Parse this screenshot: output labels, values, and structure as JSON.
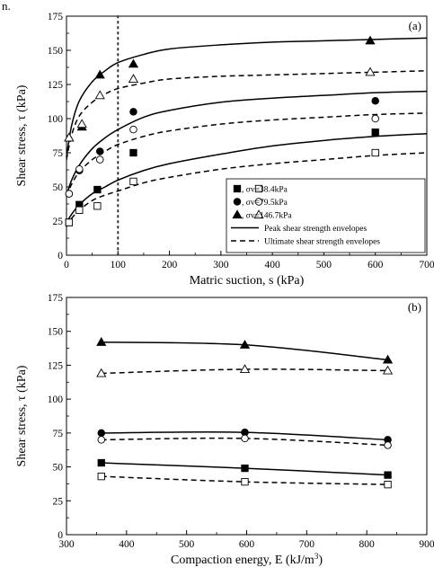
{
  "top_fragment": "n.",
  "chart_data": [
    {
      "type": "scatter",
      "panel_label": "(a)",
      "xlabel": "Matric suction, s (kPa)",
      "ylabel": "Shear stress, τ (kPa)",
      "xlim": [
        0,
        700
      ],
      "ylim": [
        0,
        175
      ],
      "xticks": [
        0,
        100,
        200,
        300,
        400,
        500,
        600,
        700
      ],
      "yticks": [
        0,
        25,
        50,
        75,
        100,
        125,
        150,
        175
      ],
      "vline": {
        "x": 100,
        "style": "dotted"
      },
      "legend": {
        "placement": "lower-right",
        "entries": [
          {
            "label": ",   σv=38.4kPa",
            "markers": [
              "filled-square",
              "open-square"
            ]
          },
          {
            "label": ",   σv=79.5kPa",
            "markers": [
              "filled-circle",
              "open-circle"
            ]
          },
          {
            "label": ",   σv=146.7kPa",
            "markers": [
              "filled-triangle",
              "open-triangle"
            ]
          },
          {
            "label": "Peak shear strength envelopes",
            "line": "solid"
          },
          {
            "label": "Ultimate shear strength envelopes",
            "line": "dashed"
          }
        ]
      },
      "series": [
        {
          "marker": "filled-square",
          "x": [
            5,
            25,
            60,
            130,
            600
          ],
          "y": [
            24,
            37,
            48,
            75,
            90
          ]
        },
        {
          "marker": "open-square",
          "x": [
            5,
            25,
            60,
            130,
            600
          ],
          "y": [
            24,
            33,
            36,
            54,
            75
          ]
        },
        {
          "marker": "filled-circle",
          "x": [
            5,
            25,
            65,
            130,
            600
          ],
          "y": [
            45,
            62,
            76,
            105,
            113
          ]
        },
        {
          "marker": "open-circle",
          "x": [
            5,
            25,
            65,
            130,
            600
          ],
          "y": [
            45,
            63,
            70,
            92,
            100
          ]
        },
        {
          "marker": "filled-triangle",
          "x": [
            5,
            30,
            65,
            130,
            590
          ],
          "y": [
            86,
            94,
            132,
            140,
            157
          ]
        },
        {
          "marker": "open-triangle",
          "x": [
            5,
            30,
            65,
            130,
            590
          ],
          "y": [
            86,
            96,
            117,
            129,
            134
          ]
        }
      ],
      "curves": [
        {
          "style": "solid",
          "x": [
            0,
            10,
            25,
            50,
            75,
            100,
            150,
            200,
            300,
            400,
            500,
            600,
            700
          ],
          "y": [
            24,
            30,
            37,
            45,
            50,
            55,
            62,
            67,
            74,
            80,
            84,
            87,
            89
          ]
        },
        {
          "style": "dashed",
          "x": [
            0,
            10,
            25,
            50,
            75,
            100,
            150,
            200,
            300,
            400,
            500,
            600,
            700
          ],
          "y": [
            21,
            27,
            33,
            40,
            44,
            47,
            53,
            57,
            63,
            67,
            70,
            73,
            75
          ]
        },
        {
          "style": "solid",
          "x": [
            0,
            10,
            25,
            50,
            75,
            100,
            150,
            200,
            300,
            400,
            500,
            600,
            700
          ],
          "y": [
            44,
            55,
            66,
            78,
            86,
            92,
            101,
            106,
            112,
            115,
            117,
            119,
            120
          ]
        },
        {
          "style": "dashed",
          "x": [
            0,
            10,
            25,
            50,
            75,
            100,
            150,
            200,
            300,
            400,
            500,
            600,
            700
          ],
          "y": [
            43,
            52,
            61,
            70,
            76,
            81,
            87,
            91,
            96,
            99,
            101,
            103,
            104
          ]
        },
        {
          "style": "solid",
          "x": [
            0,
            10,
            25,
            50,
            75,
            100,
            150,
            200,
            300,
            400,
            500,
            600,
            700
          ],
          "y": [
            72,
            95,
            113,
            127,
            135,
            141,
            147,
            151,
            154,
            156,
            157,
            158,
            159
          ]
        },
        {
          "style": "dashed",
          "x": [
            0,
            10,
            25,
            50,
            75,
            100,
            150,
            200,
            300,
            400,
            500,
            600,
            700
          ],
          "y": [
            70,
            88,
            102,
            112,
            118,
            122,
            126,
            129,
            131,
            132,
            133,
            134,
            135
          ]
        }
      ]
    },
    {
      "type": "line",
      "panel_label": "(b)",
      "xlabel": "Compaction energy, E (kJ/m",
      "xlabel_superscript": "3",
      "xlabel_suffix": ")",
      "ylabel": "Shear stress, τ (kPa)",
      "xlim": [
        300,
        900
      ],
      "ylim": [
        0,
        175
      ],
      "xticks": [
        300,
        400,
        500,
        600,
        700,
        800,
        900
      ],
      "yticks": [
        0,
        25,
        50,
        75,
        100,
        125,
        150,
        175
      ],
      "x": [
        358,
        597,
        835
      ],
      "series": [
        {
          "marker": "filled-triangle",
          "style": "solid",
          "values": [
            142,
            140,
            129
          ]
        },
        {
          "marker": "open-triangle",
          "style": "dashed",
          "values": [
            119,
            122,
            121
          ]
        },
        {
          "marker": "filled-circle",
          "style": "solid",
          "values": [
            75,
            75.5,
            70
          ]
        },
        {
          "marker": "open-circle",
          "style": "dashed",
          "values": [
            70,
            71,
            66
          ]
        },
        {
          "marker": "filled-square",
          "style": "solid",
          "values": [
            53,
            49,
            44
          ]
        },
        {
          "marker": "open-square",
          "style": "dashed",
          "values": [
            43,
            39,
            37
          ]
        }
      ]
    }
  ]
}
